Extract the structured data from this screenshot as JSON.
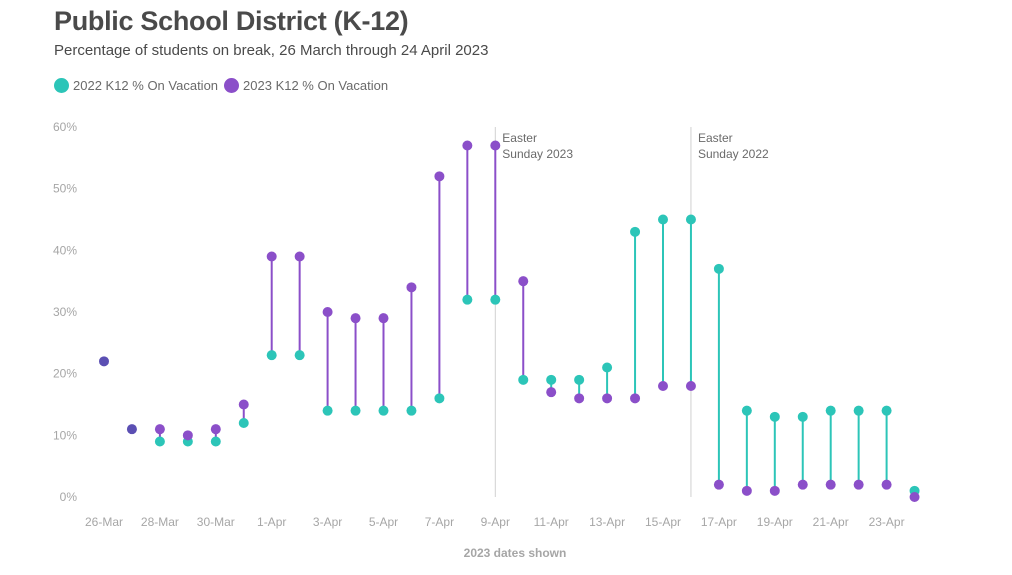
{
  "title": "Public School District (K-12)",
  "subtitle": "Percentage of students on break, 26 March through 24 April 2023",
  "legend": [
    {
      "label": "2022 K12 % On Vacation",
      "color": "#2cc5b8"
    },
    {
      "label": "2023 K12 % On Vacation",
      "color": "#8b4fc9"
    }
  ],
  "chart_data": {
    "type": "dumbbell",
    "xlabel": "2023 dates shown",
    "ylabel": "",
    "ylim": [
      0,
      60
    ],
    "y_ticks": [
      "0%",
      "10%",
      "20%",
      "30%",
      "40%",
      "50%",
      "60%"
    ],
    "x_tick_labels": [
      "26-Mar",
      "28-Mar",
      "30-Mar",
      "1-Apr",
      "3-Apr",
      "5-Apr",
      "7-Apr",
      "9-Apr",
      "11-Apr",
      "13-Apr",
      "15-Apr",
      "17-Apr",
      "19-Apr",
      "21-Apr",
      "23-Apr"
    ],
    "categories": [
      "26-Mar",
      "27-Mar",
      "28-Mar",
      "29-Mar",
      "30-Mar",
      "31-Mar",
      "1-Apr",
      "2-Apr",
      "3-Apr",
      "4-Apr",
      "5-Apr",
      "6-Apr",
      "7-Apr",
      "8-Apr",
      "9-Apr",
      "10-Apr",
      "11-Apr",
      "12-Apr",
      "13-Apr",
      "14-Apr",
      "15-Apr",
      "16-Apr",
      "17-Apr",
      "18-Apr",
      "19-Apr",
      "20-Apr",
      "21-Apr",
      "22-Apr",
      "23-Apr",
      "24-Apr"
    ],
    "series": [
      {
        "name": "2022 K12 % On Vacation",
        "color": "#2cc5b8",
        "values": [
          22,
          11,
          9,
          9,
          9,
          12,
          23,
          23,
          14,
          14,
          14,
          14,
          16,
          32,
          32,
          19,
          19,
          19,
          21,
          43,
          45,
          45,
          37,
          14,
          13,
          13,
          14,
          14,
          14,
          1
        ]
      },
      {
        "name": "2023 K12 % On Vacation",
        "color": "#8b4fc9",
        "values": [
          22,
          11,
          11,
          10,
          11,
          15,
          39,
          39,
          30,
          29,
          29,
          34,
          52,
          57,
          57,
          35,
          17,
          16,
          16,
          16,
          18,
          18,
          2,
          1,
          1,
          2,
          2,
          2,
          2,
          0
        ]
      }
    ],
    "overlap_color": "#5b4fb3",
    "annotations": [
      {
        "category": "9-Apr",
        "text_line1": "Easter",
        "text_line2": "Sunday 2023"
      },
      {
        "category": "16-Apr",
        "text_line1": "Easter",
        "text_line2": "Sunday 2022"
      }
    ],
    "grid": false
  }
}
